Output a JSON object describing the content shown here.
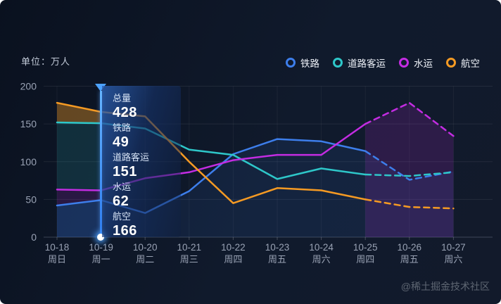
{
  "unit_label": "单位：万人",
  "legend": {
    "items": [
      {
        "label": "铁路",
        "color": "#3d7eeb"
      },
      {
        "label": "道路客运",
        "color": "#2ec7c9"
      },
      {
        "label": "水运",
        "color": "#c32ce2"
      },
      {
        "label": "航空",
        "color": "#f59a23"
      }
    ]
  },
  "tooltip": {
    "highlighted_category": "10-19",
    "rows": [
      {
        "label": "总量",
        "value": "428"
      },
      {
        "label": "铁路",
        "value": "49"
      },
      {
        "label": "道路客运",
        "value": "151"
      },
      {
        "label": "水运",
        "value": "62"
      },
      {
        "label": "航空",
        "value": "166"
      }
    ]
  },
  "watermark": "@稀土掘金技术社区",
  "chart_data": {
    "type": "line",
    "title": "",
    "xlabel": "",
    "ylabel": "单位：万人",
    "categories": [
      "10-18",
      "10-19",
      "10-20",
      "10-21",
      "10-22",
      "10-23",
      "10-24",
      "10-25",
      "10-26",
      "10-27"
    ],
    "weekdays": [
      "周日",
      "周一",
      "周二",
      "周三",
      "周四",
      "周五",
      "周六",
      "周四",
      "周五",
      "周六"
    ],
    "ylim": [
      0,
      200
    ],
    "yticks": [
      0,
      50,
      100,
      150,
      200
    ],
    "grid": true,
    "legend_position": "top-right",
    "dashed_from_index": 7,
    "highlight_index": 1,
    "series": [
      {
        "name": "铁路",
        "color": "#3d7eeb",
        "values": [
          42,
          49,
          32,
          61,
          110,
          130,
          127,
          114,
          76,
          87
        ]
      },
      {
        "name": "道路客运",
        "color": "#2ec7c9",
        "values": [
          152,
          151,
          144,
          116,
          109,
          77,
          91,
          83,
          81,
          86
        ]
      },
      {
        "name": "水运",
        "color": "#c32ce2",
        "values": [
          63,
          62,
          78,
          86,
          102,
          109,
          109,
          150,
          178,
          134
        ]
      },
      {
        "name": "航空",
        "color": "#f59a23",
        "values": [
          178,
          166,
          160,
          100,
          45,
          65,
          62,
          50,
          40,
          38
        ]
      }
    ]
  }
}
